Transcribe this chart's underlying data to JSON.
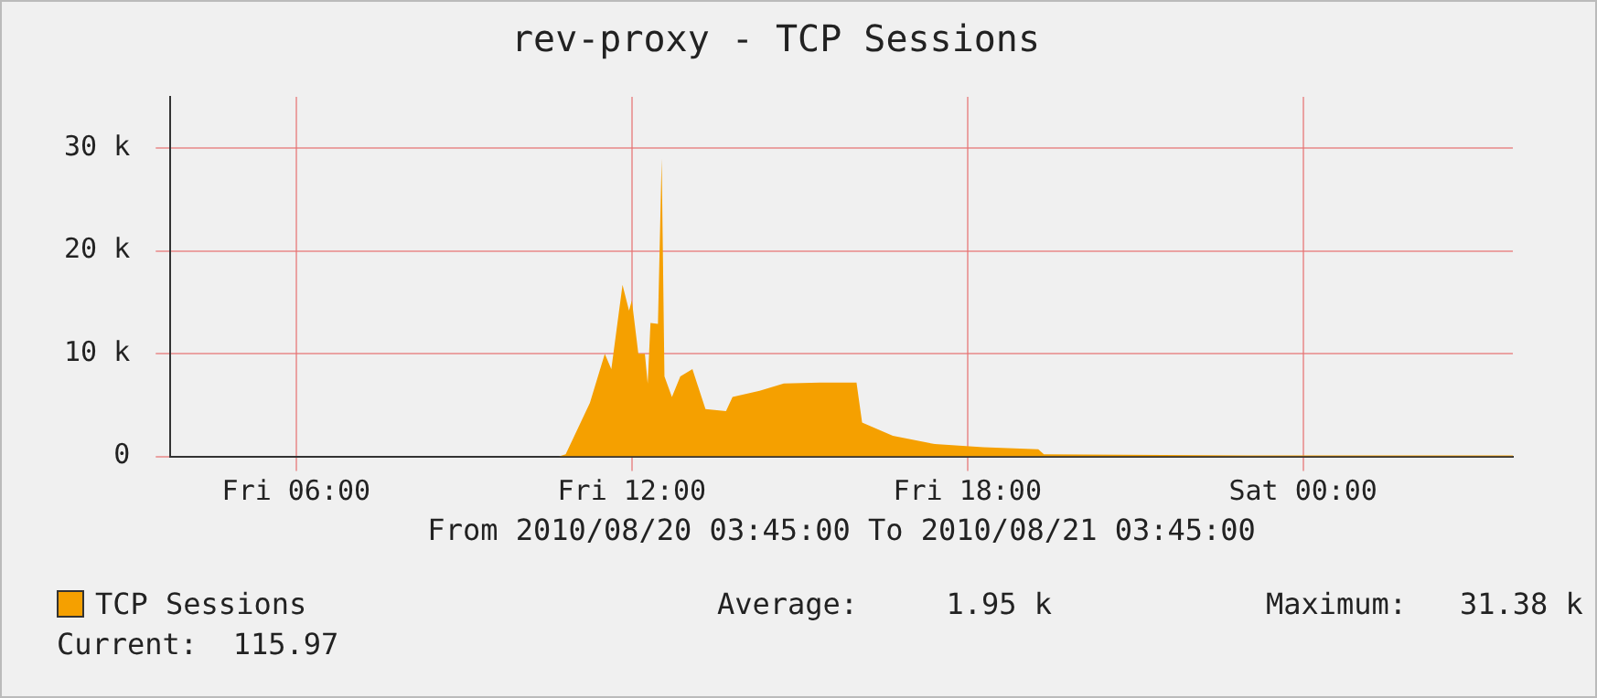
{
  "chart_data": {
    "type": "area",
    "title": "rev-proxy - TCP Sessions",
    "xlabel": "From 2010/08/20 03:45:00 To 2010/08/21 03:45:00",
    "series": [
      {
        "name": "TCP Sessions",
        "color": "#f5a000",
        "x": [
          "2010-08-20T03:45",
          "2010-08-20T10:42",
          "2010-08-20T10:49",
          "2010-08-20T11:15",
          "2010-08-20T11:31",
          "2010-08-20T11:38",
          "2010-08-20T11:50",
          "2010-08-20T11:57",
          "2010-08-20T12:00",
          "2010-08-20T12:07",
          "2010-08-20T12:14",
          "2010-08-20T12:17",
          "2010-08-20T12:20",
          "2010-08-20T12:28",
          "2010-08-20T12:32",
          "2010-08-20T12:35",
          "2010-08-20T12:43",
          "2010-08-20T12:52",
          "2010-08-20T13:05",
          "2010-08-20T13:19",
          "2010-08-20T13:41",
          "2010-08-20T13:48",
          "2010-08-20T14:17",
          "2010-08-20T14:43",
          "2010-08-20T15:22",
          "2010-08-20T16:01",
          "2010-08-20T16:07",
          "2010-08-20T16:40",
          "2010-08-20T17:25",
          "2010-08-20T18:17",
          "2010-08-20T19:16",
          "2010-08-20T19:22",
          "2010-08-20T23:00",
          "2010-08-21T03:45"
        ],
        "values": [
          0,
          0,
          200,
          5200,
          10000,
          8500,
          16700,
          14200,
          15200,
          10000,
          10000,
          7100,
          13000,
          12900,
          29000,
          7800,
          5800,
          7800,
          8500,
          4600,
          4400,
          5800,
          6400,
          7100,
          7200,
          7200,
          3300,
          2000,
          1200,
          900,
          700,
          200,
          100,
          100
        ]
      }
    ],
    "xlim": [
      "2010-08-20T03:45",
      "2010-08-21T03:45"
    ],
    "xticks": [
      {
        "value": "2010-08-20T06:00",
        "label": "Fri 06:00"
      },
      {
        "value": "2010-08-20T12:00",
        "label": "Fri 12:00"
      },
      {
        "value": "2010-08-20T18:00",
        "label": "Fri 18:00"
      },
      {
        "value": "2010-08-21T00:00",
        "label": "Sat 00:00"
      }
    ],
    "ylim": [
      0,
      35000
    ],
    "yticks": [
      {
        "value": 0,
        "label": "0"
      },
      {
        "value": 10000,
        "label": "10 k"
      },
      {
        "value": 20000,
        "label": "20 k"
      },
      {
        "value": 30000,
        "label": "30 k"
      }
    ],
    "grid": true,
    "legend": "bottom",
    "annotations": [
      "Average:     1.95 k",
      "Maximum:   31.38 k",
      "Current:  115.97"
    ]
  }
}
